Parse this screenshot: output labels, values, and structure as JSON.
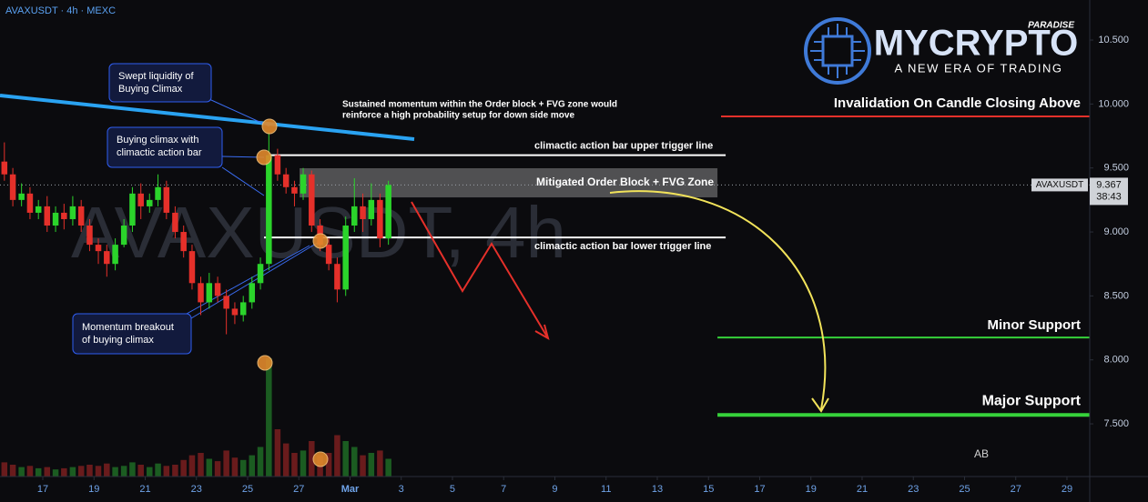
{
  "chart_data": {
    "type": "candlestick",
    "title": "AVAXUSDT · 4h · MEXC",
    "watermark": "AVAXUSDT, 4h",
    "x": [
      -1.5,
      -1.17,
      -0.83,
      -0.5,
      -0.17,
      0.17,
      0.5,
      0.83,
      1.17,
      1.5,
      1.83,
      2.17,
      2.5,
      2.83,
      3.17,
      3.5,
      3.83,
      4.17,
      4.5,
      4.83,
      5.17,
      5.5,
      5.83,
      6.17,
      6.5,
      6.83,
      7.17,
      7.5,
      7.83,
      8.17,
      8.5,
      8.83,
      9.17,
      9.5,
      9.83,
      10.17,
      10.5,
      10.83,
      11.17,
      11.5,
      11.83,
      12.17,
      12.5,
      12.83,
      13.17,
      13.5
    ],
    "open": [
      9.55,
      9.45,
      9.25,
      9.3,
      9.15,
      9.2,
      9.05,
      9.15,
      9.1,
      9.2,
      9.05,
      8.9,
      8.85,
      8.75,
      8.9,
      9.05,
      9.3,
      9.2,
      9.25,
      9.35,
      9.15,
      9.0,
      8.85,
      8.6,
      8.45,
      8.6,
      8.5,
      8.4,
      8.35,
      8.45,
      8.6,
      8.75,
      9.6,
      9.45,
      9.35,
      9.3,
      9.45,
      9.05,
      8.9,
      8.75,
      8.55,
      9.05,
      9.2,
      9.1,
      9.25,
      8.95
    ],
    "high": [
      9.7,
      9.5,
      9.38,
      9.35,
      9.25,
      9.28,
      9.2,
      9.22,
      9.28,
      9.25,
      9.1,
      8.95,
      8.9,
      8.95,
      9.1,
      9.35,
      9.38,
      9.3,
      9.45,
      9.4,
      9.2,
      9.05,
      8.9,
      8.65,
      8.68,
      8.65,
      8.55,
      8.45,
      8.5,
      8.65,
      8.8,
      9.78,
      9.65,
      9.5,
      9.4,
      9.5,
      9.48,
      9.1,
      8.95,
      8.8,
      9.12,
      9.42,
      9.3,
      9.38,
      9.3,
      9.4
    ],
    "low": [
      9.4,
      9.2,
      9.2,
      9.1,
      9.1,
      9.0,
      9.0,
      9.02,
      9.05,
      9.0,
      8.85,
      8.75,
      8.65,
      8.7,
      8.88,
      9.0,
      9.1,
      9.15,
      9.2,
      9.1,
      8.95,
      8.8,
      8.55,
      8.35,
      8.4,
      8.45,
      8.2,
      8.28,
      8.3,
      8.4,
      8.55,
      8.7,
      9.4,
      9.3,
      9.2,
      9.25,
      9.0,
      8.85,
      8.7,
      8.45,
      8.5,
      9.0,
      9.0,
      9.05,
      8.88,
      8.9
    ],
    "close": [
      9.45,
      9.25,
      9.3,
      9.15,
      9.2,
      9.05,
      9.15,
      9.1,
      9.2,
      9.05,
      8.9,
      8.85,
      8.75,
      8.9,
      9.05,
      9.3,
      9.2,
      9.25,
      9.35,
      9.15,
      9.0,
      8.85,
      8.6,
      8.45,
      8.6,
      8.5,
      8.4,
      8.35,
      8.45,
      8.6,
      8.75,
      9.6,
      9.45,
      9.35,
      9.3,
      9.45,
      9.05,
      8.9,
      8.75,
      8.55,
      9.05,
      9.2,
      9.1,
      9.25,
      8.95,
      9.367
    ],
    "volume": [
      12,
      10,
      8,
      9,
      7,
      8,
      6,
      7,
      8,
      9,
      10,
      9,
      11,
      8,
      9,
      12,
      10,
      8,
      11,
      9,
      10,
      14,
      18,
      20,
      15,
      13,
      22,
      16,
      14,
      18,
      25,
      100,
      40,
      28,
      20,
      22,
      30,
      18,
      20,
      35,
      30,
      25,
      18,
      20,
      22,
      15
    ],
    "up_color": "#2bd42b",
    "down_color": "#e5302a",
    "xlim": [
      -1.671,
      40.89
    ],
    "xticks": [
      {
        "value": 0,
        "label": "17"
      },
      {
        "value": 2,
        "label": "19"
      },
      {
        "value": 4,
        "label": "21"
      },
      {
        "value": 6,
        "label": "23"
      },
      {
        "value": 8,
        "label": "25"
      },
      {
        "value": 10,
        "label": "27"
      },
      {
        "value": 12,
        "label": "Mar"
      },
      {
        "value": 14,
        "label": "3"
      },
      {
        "value": 16,
        "label": "5"
      },
      {
        "value": 18,
        "label": "7"
      },
      {
        "value": 20,
        "label": "9"
      },
      {
        "value": 22,
        "label": "11"
      },
      {
        "value": 24,
        "label": "13"
      },
      {
        "value": 26,
        "label": "15"
      },
      {
        "value": 28,
        "label": "17"
      },
      {
        "value": 30,
        "label": "19"
      },
      {
        "value": 32,
        "label": "21"
      },
      {
        "value": 34,
        "label": "23"
      },
      {
        "value": 36,
        "label": "25"
      },
      {
        "value": 38,
        "label": "27"
      },
      {
        "value": 40,
        "label": "29"
      }
    ],
    "ylim": [
      7.088,
      10.813
    ],
    "yticks": [
      {
        "value": 7.5,
        "label": "7.500"
      },
      {
        "value": 8,
        "label": "8.000"
      },
      {
        "value": 8.5,
        "label": "8.500"
      },
      {
        "value": 9,
        "label": "9.000"
      },
      {
        "value": 9.5,
        "label": "9.500"
      },
      {
        "value": 10,
        "label": "10.000"
      },
      {
        "value": 10.5,
        "label": "10.500"
      }
    ],
    "last_price": {
      "value": 9.367,
      "symbol": "AVAXUSDT",
      "countdown": "38:43"
    },
    "zone": {
      "label": "Mitigated Order Block + FVG Zone",
      "low": 9.27,
      "high": 9.498,
      "from": 10.03,
      "to": 26.35
    },
    "levels": [
      {
        "label": "Invalidation On Candle Closing Above",
        "value": 9.903,
        "color": "#e5302a",
        "from": 26.49
      },
      {
        "label": "climactic action bar upper trigger line",
        "value": 9.6,
        "color": "#ffffff",
        "from": 8.85,
        "to": 26.67
      },
      {
        "label": "climactic action bar lower trigger line",
        "value": 8.957,
        "color": "#ffffff",
        "from": 8.64,
        "to": 26.67
      },
      {
        "label": "Minor Support",
        "value": 8.175,
        "color": "#36d23a",
        "from": 26.35
      },
      {
        "label": "Major Support",
        "value": 7.57,
        "color": "#36d23a",
        "from": 26.35
      }
    ]
  },
  "annotations": {
    "note": [
      "Sustained momentum within the Order block + FVG zone would",
      "reinforce a high probability setup for down side move"
    ],
    "callouts": [
      [
        "Swept liquidity of",
        "Buying Climax"
      ],
      [
        "Buying climax with",
        "climactic action bar"
      ],
      [
        "Momentum breakout",
        "of buying climax"
      ]
    ],
    "initials": "AB"
  },
  "logo": {
    "name": "MYCRYPTO",
    "tag": "PARADISE",
    "slogan": "A NEW ERA OF TRADING"
  }
}
